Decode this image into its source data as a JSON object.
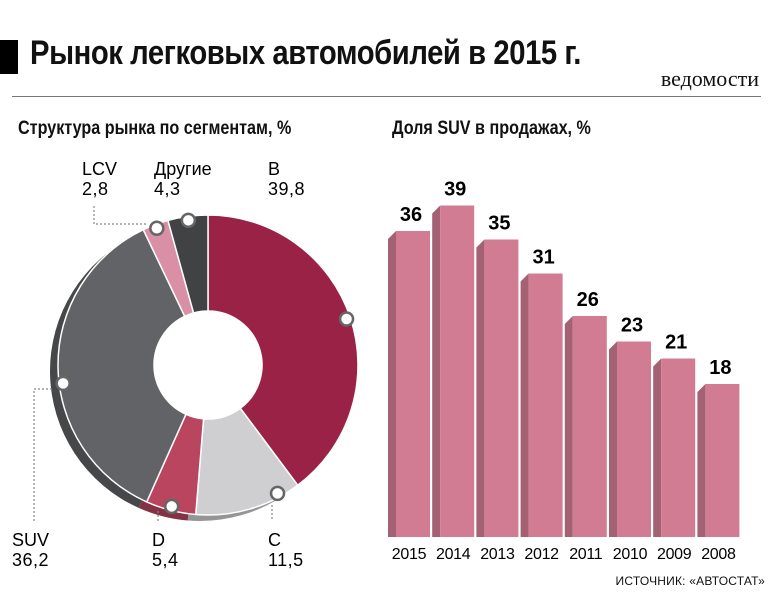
{
  "header": {
    "title": "Рынок легковых автомобилей в 2015 г.",
    "brand": "ведомости"
  },
  "footer": {
    "source": "ИСТОЧНИК: «АВТОСТАТ»"
  },
  "colors": {
    "B": "#9b2247",
    "C": "#cfcfd1",
    "D": "#b9455e",
    "SUV": "#616366",
    "LCV": "#d98fa5",
    "Другие": "#414244",
    "bar": "#d27c94"
  },
  "chart_data": [
    {
      "type": "pie",
      "title": "Структура рынка по сегментам, %",
      "slices": [
        {
          "label": "B",
          "value": 39.8,
          "value_text": "39,8"
        },
        {
          "label": "C",
          "value": 11.5,
          "value_text": "11,5"
        },
        {
          "label": "D",
          "value": 5.4,
          "value_text": "5,4"
        },
        {
          "label": "SUV",
          "value": 36.2,
          "value_text": "36,2"
        },
        {
          "label": "LCV",
          "value": 2.8,
          "value_text": "2,8"
        },
        {
          "label": "Другие",
          "value": 4.3,
          "value_text": "4,3"
        }
      ]
    },
    {
      "type": "bar",
      "title": "Доля SUV в продажах, %",
      "categories": [
        "2015",
        "2014",
        "2013",
        "2012",
        "2011",
        "2010",
        "2009",
        "2008"
      ],
      "values": [
        36,
        39,
        35,
        31,
        26,
        23,
        21,
        18
      ],
      "ylim": [
        0,
        40
      ]
    }
  ]
}
